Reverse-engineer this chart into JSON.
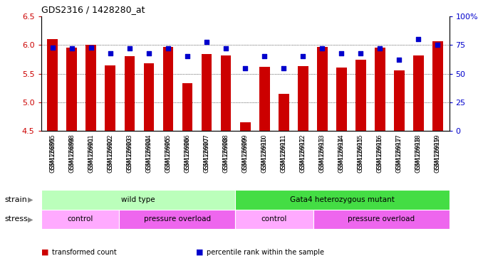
{
  "title": "GDS2316 / 1428280_at",
  "samples": [
    "GSM126895",
    "GSM126898",
    "GSM126901",
    "GSM126902",
    "GSM126903",
    "GSM126904",
    "GSM126905",
    "GSM126906",
    "GSM126907",
    "GSM126908",
    "GSM126909",
    "GSM126910",
    "GSM126911",
    "GSM126912",
    "GSM126913",
    "GSM126914",
    "GSM126915",
    "GSM126916",
    "GSM126917",
    "GSM126918",
    "GSM126919"
  ],
  "transformed_count": [
    6.1,
    5.95,
    6.0,
    5.65,
    5.8,
    5.68,
    5.97,
    5.34,
    5.84,
    5.82,
    4.65,
    5.62,
    5.15,
    5.63,
    5.97,
    5.61,
    5.75,
    5.96,
    5.56,
    5.82,
    6.07
  ],
  "percentile_rank": [
    73,
    72,
    73,
    68,
    72,
    68,
    72,
    65,
    78,
    72,
    55,
    65,
    55,
    65,
    72,
    68,
    68,
    72,
    62,
    80,
    75
  ],
  "ylim_left": [
    4.5,
    6.5
  ],
  "ylim_right": [
    0,
    100
  ],
  "yticks_left": [
    4.5,
    5.0,
    5.5,
    6.0,
    6.5
  ],
  "yticks_right": [
    0,
    25,
    50,
    75,
    100
  ],
  "bar_color": "#cc0000",
  "dot_color": "#0000cc",
  "bar_bottom": 4.5,
  "strain_groups": [
    {
      "label": "wild type",
      "start": 0,
      "end": 10,
      "color": "#bbffbb"
    },
    {
      "label": "Gata4 heterozygous mutant",
      "start": 10,
      "end": 21,
      "color": "#44dd44"
    }
  ],
  "stress_groups": [
    {
      "label": "control",
      "start": 0,
      "end": 4,
      "color": "#ffaaff"
    },
    {
      "label": "pressure overload",
      "start": 4,
      "end": 10,
      "color": "#ee66ee"
    },
    {
      "label": "control",
      "start": 10,
      "end": 14,
      "color": "#ffaaff"
    },
    {
      "label": "pressure overload",
      "start": 14,
      "end": 21,
      "color": "#ee66ee"
    }
  ],
  "legend_items": [
    {
      "color": "#cc0000",
      "label": "transformed count"
    },
    {
      "color": "#0000cc",
      "label": "percentile rank within the sample"
    }
  ],
  "grid_lines": [
    5.0,
    5.5,
    6.0
  ],
  "bg_color": "#ffffff",
  "tick_label_color_left": "#cc0000",
  "tick_label_color_right": "#0000cc",
  "xtick_bg": "#dddddd",
  "n_samples": 21
}
